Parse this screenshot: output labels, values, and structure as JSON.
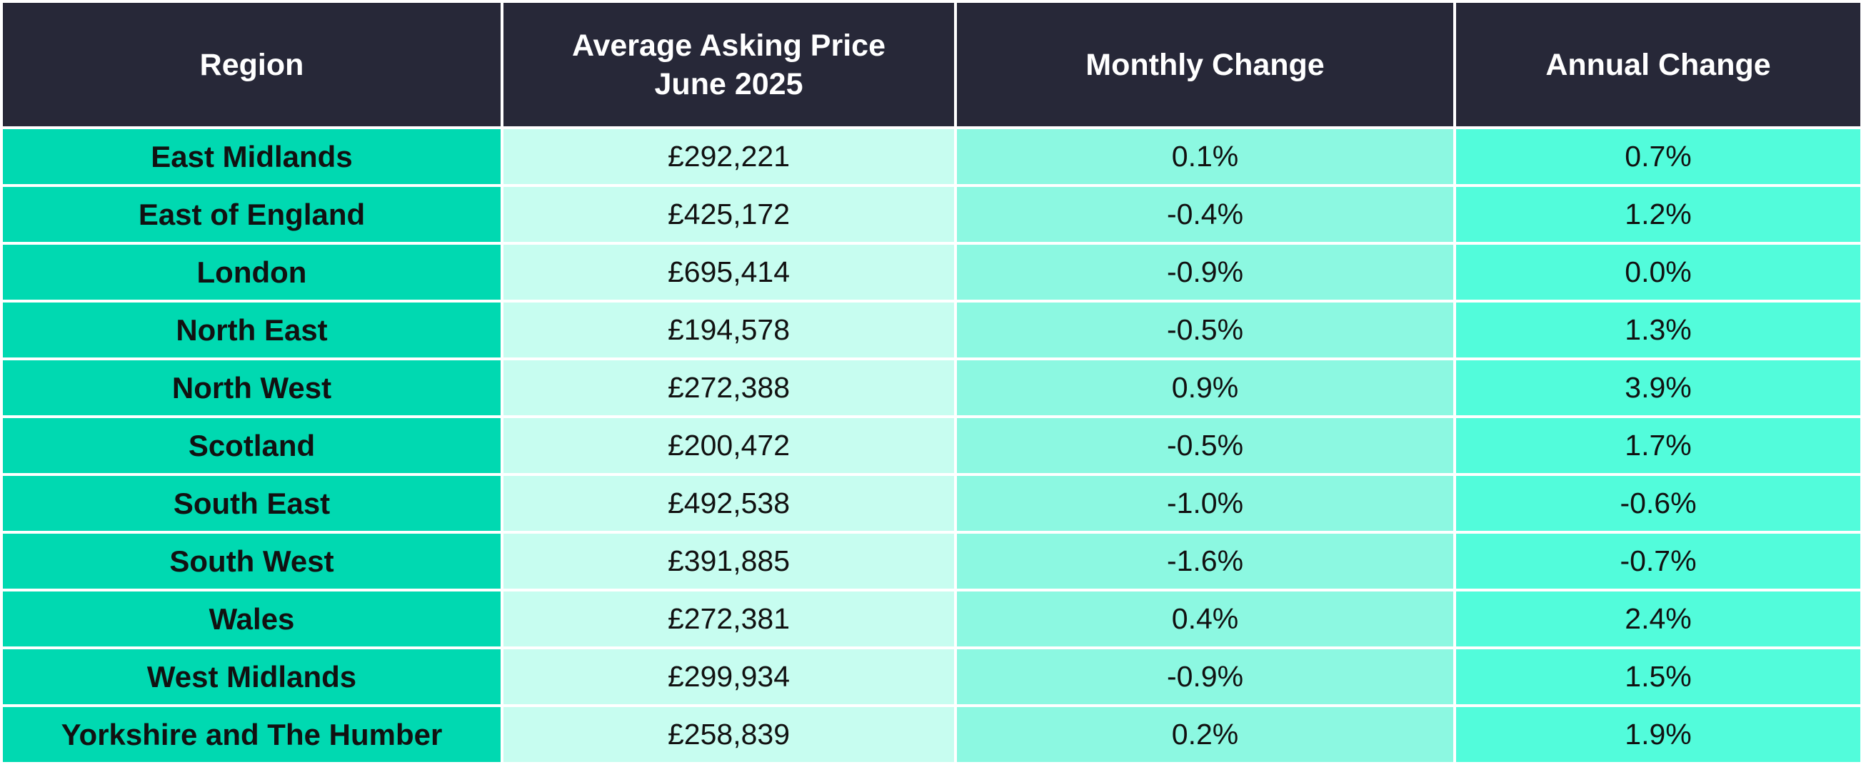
{
  "table": {
    "headers": {
      "region": "Region",
      "price_line1": "Average Asking Price",
      "price_line2": "June 2025",
      "monthly": "Monthly Change",
      "annual": "Annual Change"
    },
    "rows": [
      {
        "region": "East Midlands",
        "price": "£292,221",
        "monthly": "0.1%",
        "annual": "0.7%"
      },
      {
        "region": "East of England",
        "price": "£425,172",
        "monthly": "-0.4%",
        "annual": "1.2%"
      },
      {
        "region": "London",
        "price": "£695,414",
        "monthly": "-0.9%",
        "annual": "0.0%"
      },
      {
        "region": "North East",
        "price": "£194,578",
        "monthly": "-0.5%",
        "annual": "1.3%"
      },
      {
        "region": "North West",
        "price": "£272,388",
        "monthly": "0.9%",
        "annual": "3.9%"
      },
      {
        "region": "Scotland",
        "price": "£200,472",
        "monthly": "-0.5%",
        "annual": "1.7%"
      },
      {
        "region": "South East",
        "price": "£492,538",
        "monthly": "-1.0%",
        "annual": "-0.6%"
      },
      {
        "region": "South West",
        "price": "£391,885",
        "monthly": "-1.6%",
        "annual": "-0.7%"
      },
      {
        "region": "Wales",
        "price": "£272,381",
        "monthly": "0.4%",
        "annual": "2.4%"
      },
      {
        "region": "West Midlands",
        "price": "£299,934",
        "monthly": "-0.9%",
        "annual": "1.5%"
      },
      {
        "region": "Yorkshire and The Humber",
        "price": "£258,839",
        "monthly": "0.2%",
        "annual": "1.9%"
      }
    ]
  },
  "colors": {
    "header_bg": "#272838",
    "header_text": "#ffffff",
    "region_bg": "#00d9b1",
    "price_bg": "#c7fdf0",
    "monthly_bg": "#8cf8e1",
    "annual_bg": "#52fcdb"
  }
}
